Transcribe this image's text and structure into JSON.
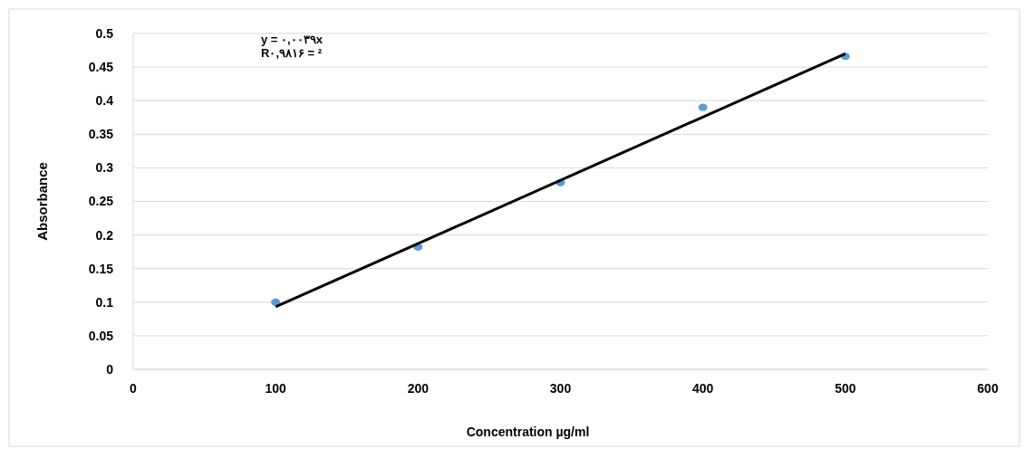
{
  "chart_data": {
    "type": "scatter",
    "xlabel": "Concentration µg/ml",
    "ylabel": "Absorbance",
    "x": [
      100,
      200,
      300,
      400,
      500
    ],
    "series": [
      {
        "color": "#5b9bd5",
        "values": [
          0.1,
          0.182,
          0.278,
          0.39,
          0.466
        ],
        "marker": "circle"
      },
      {
        "type": "line",
        "color": "#000000",
        "x": [
          100,
          500
        ],
        "values": [
          0.093,
          0.47
        ],
        "marker": "none",
        "line_style": "solid"
      }
    ],
    "xlim": [
      0,
      600
    ],
    "xticks": [
      0,
      100,
      200,
      300,
      400,
      500,
      600
    ],
    "ylim": [
      0,
      0.5
    ],
    "yticks": [
      0,
      0.05,
      0.1,
      0.15,
      0.2,
      0.25,
      0.3,
      0.35,
      0.4,
      0.45,
      0.5
    ],
    "grid": "y",
    "annotations": [
      "y = ۰,۰۰۳۹x",
      "R۰,۹۸۱۶ = ²"
    ]
  }
}
